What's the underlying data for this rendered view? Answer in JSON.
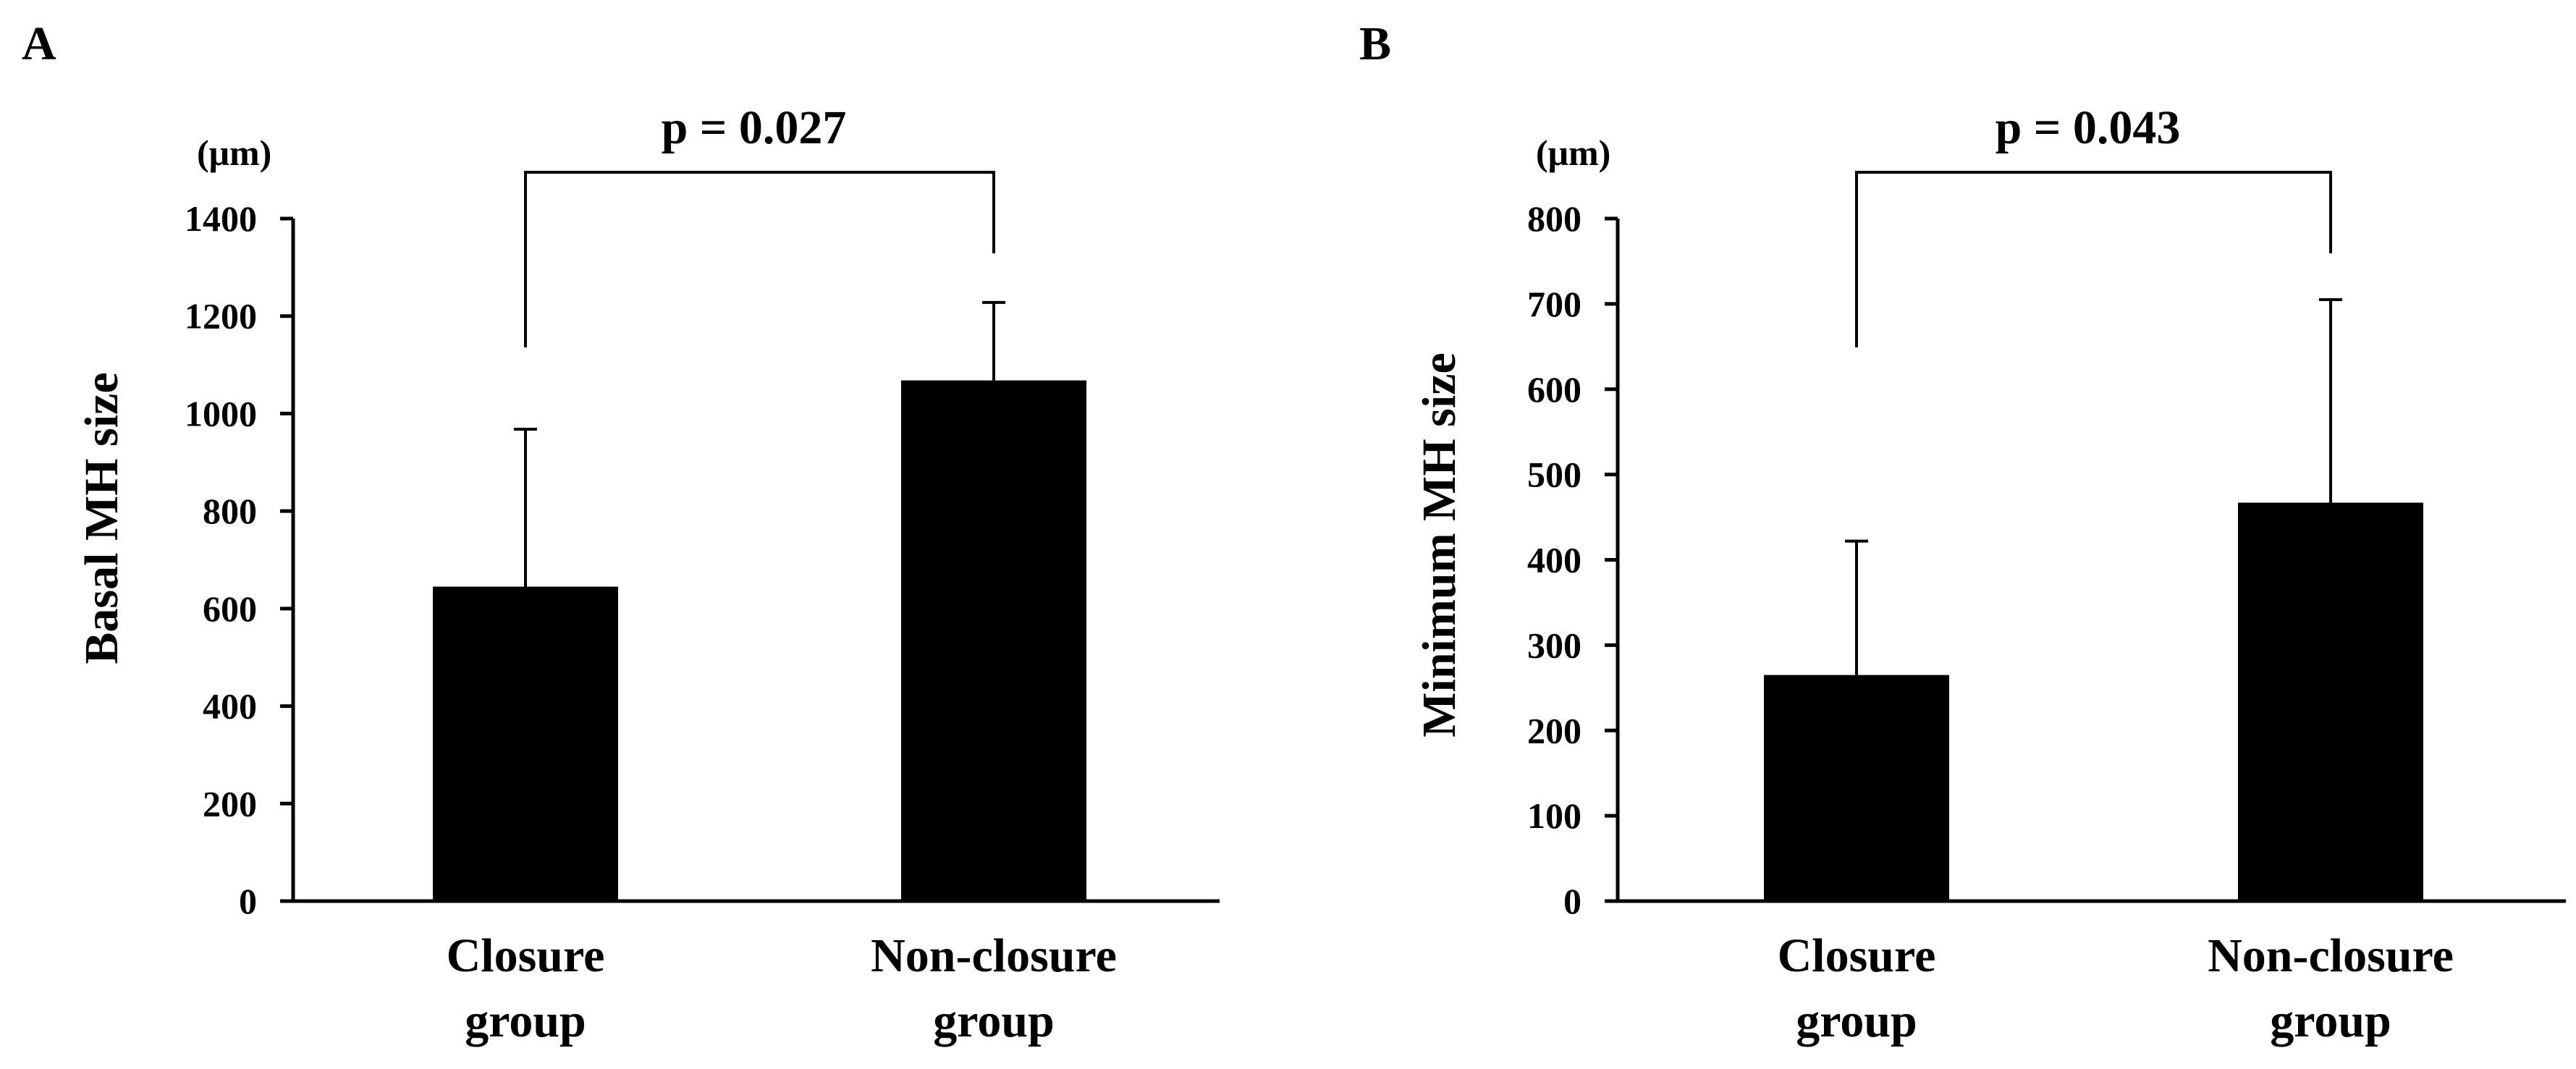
{
  "chart_data": [
    {
      "type": "bar",
      "panel_label": "A",
      "ylabel": "Basal MH size",
      "unit": "(μm)",
      "categories": [
        [
          "Closure",
          "group"
        ],
        [
          "Non-closure",
          "group"
        ]
      ],
      "values": [
        645,
        1068
      ],
      "error_upper": [
        968,
        1228
      ],
      "ylim": [
        0,
        1400
      ],
      "yticks": [
        0,
        200,
        400,
        600,
        800,
        1000,
        1200,
        1400
      ],
      "annotation": "p = 0.027",
      "bar_color": "#000000",
      "grid": false,
      "legend": "none"
    },
    {
      "type": "bar",
      "panel_label": "B",
      "ylabel": "Minimum MH size",
      "unit": "(μm)",
      "categories": [
        [
          "Closure",
          "group"
        ],
        [
          "Non-closure",
          "group"
        ]
      ],
      "values": [
        265,
        467
      ],
      "error_upper": [
        422,
        705
      ],
      "ylim": [
        0,
        800
      ],
      "yticks": [
        0,
        100,
        200,
        300,
        400,
        500,
        600,
        700,
        800
      ],
      "annotation": "p = 0.043",
      "bar_color": "#000000",
      "grid": false,
      "legend": "none"
    }
  ]
}
